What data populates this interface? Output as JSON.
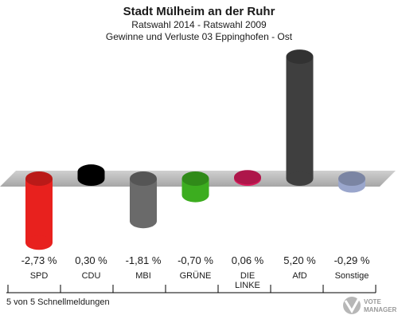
{
  "chart_data": {
    "type": "bar",
    "title": "Stadt Mülheim an der Ruhr",
    "subtitle": "Ratswahl 2014 - Ratswahl 2009",
    "subtitle2": "Gewinne und Verluste 03 Eppinghofen - Ost",
    "categories": [
      "SPD",
      "CDU",
      "MBI",
      "GRÜNE",
      "DIE LINKE",
      "AfD",
      "Sonstige"
    ],
    "values": [
      -2.73,
      0.3,
      -1.81,
      -0.7,
      0.06,
      5.2,
      -0.29
    ],
    "value_labels": [
      "-2,73 %",
      "0,30 %",
      "-1,81 %",
      "-0,70 %",
      "0,06 %",
      "5,20 %",
      "-0,29 %"
    ],
    "colors": [
      "#e8211e",
      "#000000",
      "#6a6a6a",
      "#3cad1f",
      "#d91b5c",
      "#3f3f3f",
      "#9aa6cc"
    ],
    "ylim": [
      -3.0,
      6.0
    ],
    "grid": false,
    "footnote": "5 von 5 Schnellmeldungen",
    "logo_text": "VOTE MANAGER"
  }
}
